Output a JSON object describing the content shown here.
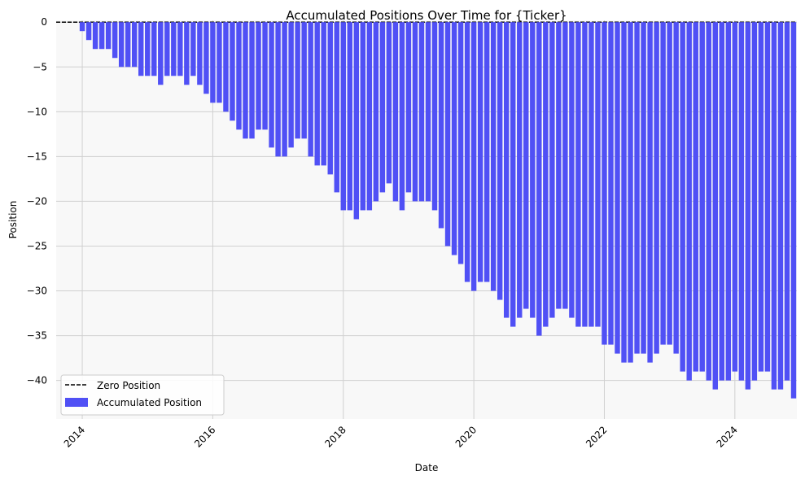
{
  "colors": {
    "bar": "#5050f5",
    "plot_bg": "#f8f8f8",
    "grid": "#d0d0d0",
    "zero_line": "#000000"
  },
  "chart_data": {
    "type": "bar",
    "title": "Accumulated Positions Over Time for {Ticker}",
    "xlabel": "Date",
    "ylabel": "Position",
    "ylim": [
      -44.3,
      0.2
    ],
    "xlim": [
      2013.6,
      2024.95
    ],
    "grid": true,
    "legend": {
      "placement": "lower-left",
      "entries": [
        "Zero Position",
        "Accumulated Position"
      ]
    },
    "x_ticks": [
      {
        "value": 2014,
        "label": "2014"
      },
      {
        "value": 2016,
        "label": "2016"
      },
      {
        "value": 2018,
        "label": "2018"
      },
      {
        "value": 2020,
        "label": "2020"
      },
      {
        "value": 2022,
        "label": "2022"
      },
      {
        "value": 2024,
        "label": "2024"
      }
    ],
    "y_ticks": [
      {
        "value": 0,
        "label": "0"
      },
      {
        "value": -5,
        "label": "−5"
      },
      {
        "value": -10,
        "label": "−10"
      },
      {
        "value": -15,
        "label": "−15"
      },
      {
        "value": -20,
        "label": "−20"
      },
      {
        "value": -25,
        "label": "−25"
      },
      {
        "value": -30,
        "label": "−30"
      },
      {
        "value": -35,
        "label": "−35"
      },
      {
        "value": -40,
        "label": "−40"
      }
    ],
    "series": [
      {
        "name": "Accumulated Position",
        "points": [
          [
            2014.0,
            -1
          ],
          [
            2014.1,
            -2
          ],
          [
            2014.2,
            -3
          ],
          [
            2014.3,
            -3
          ],
          [
            2014.4,
            -3
          ],
          [
            2014.5,
            -4
          ],
          [
            2014.6,
            -5
          ],
          [
            2014.7,
            -5
          ],
          [
            2014.8,
            -5
          ],
          [
            2014.9,
            -6
          ],
          [
            2015.0,
            -6
          ],
          [
            2015.1,
            -6
          ],
          [
            2015.2,
            -7
          ],
          [
            2015.3,
            -6
          ],
          [
            2015.4,
            -6
          ],
          [
            2015.5,
            -6
          ],
          [
            2015.6,
            -7
          ],
          [
            2015.7,
            -6
          ],
          [
            2015.8,
            -7
          ],
          [
            2015.9,
            -8
          ],
          [
            2016.0,
            -9
          ],
          [
            2016.1,
            -9
          ],
          [
            2016.2,
            -10
          ],
          [
            2016.3,
            -11
          ],
          [
            2016.4,
            -12
          ],
          [
            2016.5,
            -13
          ],
          [
            2016.6,
            -13
          ],
          [
            2016.7,
            -12
          ],
          [
            2016.8,
            -12
          ],
          [
            2016.9,
            -14
          ],
          [
            2017.0,
            -15
          ],
          [
            2017.1,
            -15
          ],
          [
            2017.2,
            -14
          ],
          [
            2017.3,
            -13
          ],
          [
            2017.4,
            -13
          ],
          [
            2017.5,
            -15
          ],
          [
            2017.6,
            -16
          ],
          [
            2017.7,
            -16
          ],
          [
            2017.8,
            -17
          ],
          [
            2017.9,
            -19
          ],
          [
            2018.0,
            -21
          ],
          [
            2018.1,
            -21
          ],
          [
            2018.2,
            -22
          ],
          [
            2018.3,
            -21
          ],
          [
            2018.4,
            -21
          ],
          [
            2018.5,
            -20
          ],
          [
            2018.6,
            -19
          ],
          [
            2018.7,
            -18
          ],
          [
            2018.8,
            -20
          ],
          [
            2018.9,
            -21
          ],
          [
            2019.0,
            -19
          ],
          [
            2019.1,
            -20
          ],
          [
            2019.2,
            -20
          ],
          [
            2019.3,
            -20
          ],
          [
            2019.4,
            -21
          ],
          [
            2019.5,
            -23
          ],
          [
            2019.6,
            -25
          ],
          [
            2019.7,
            -26
          ],
          [
            2019.8,
            -27
          ],
          [
            2019.9,
            -29
          ],
          [
            2020.0,
            -30
          ],
          [
            2020.1,
            -29
          ],
          [
            2020.2,
            -29
          ],
          [
            2020.3,
            -30
          ],
          [
            2020.4,
            -31
          ],
          [
            2020.5,
            -33
          ],
          [
            2020.6,
            -34
          ],
          [
            2020.7,
            -33
          ],
          [
            2020.8,
            -32
          ],
          [
            2020.9,
            -33
          ],
          [
            2021.0,
            -35
          ],
          [
            2021.1,
            -34
          ],
          [
            2021.2,
            -33
          ],
          [
            2021.3,
            -32
          ],
          [
            2021.4,
            -32
          ],
          [
            2021.5,
            -33
          ],
          [
            2021.6,
            -34
          ],
          [
            2021.7,
            -34
          ],
          [
            2021.8,
            -34
          ],
          [
            2021.9,
            -34
          ],
          [
            2022.0,
            -36
          ],
          [
            2022.1,
            -36
          ],
          [
            2022.2,
            -37
          ],
          [
            2022.3,
            -38
          ],
          [
            2022.4,
            -38
          ],
          [
            2022.5,
            -37
          ],
          [
            2022.6,
            -37
          ],
          [
            2022.7,
            -38
          ],
          [
            2022.8,
            -37
          ],
          [
            2022.9,
            -36
          ],
          [
            2023.0,
            -36
          ],
          [
            2023.1,
            -37
          ],
          [
            2023.2,
            -39
          ],
          [
            2023.3,
            -40
          ],
          [
            2023.4,
            -39
          ],
          [
            2023.5,
            -39
          ],
          [
            2023.6,
            -40
          ],
          [
            2023.7,
            -41
          ],
          [
            2023.8,
            -40
          ],
          [
            2023.9,
            -40
          ],
          [
            2024.0,
            -39
          ],
          [
            2024.1,
            -40
          ],
          [
            2024.2,
            -41
          ],
          [
            2024.3,
            -40
          ],
          [
            2024.4,
            -39
          ],
          [
            2024.5,
            -39
          ],
          [
            2024.6,
            -41
          ],
          [
            2024.7,
            -41
          ],
          [
            2024.8,
            -40
          ],
          [
            2024.9,
            -42
          ]
        ]
      },
      {
        "name": "Zero Position",
        "style": "dashed",
        "y": 0
      }
    ]
  }
}
